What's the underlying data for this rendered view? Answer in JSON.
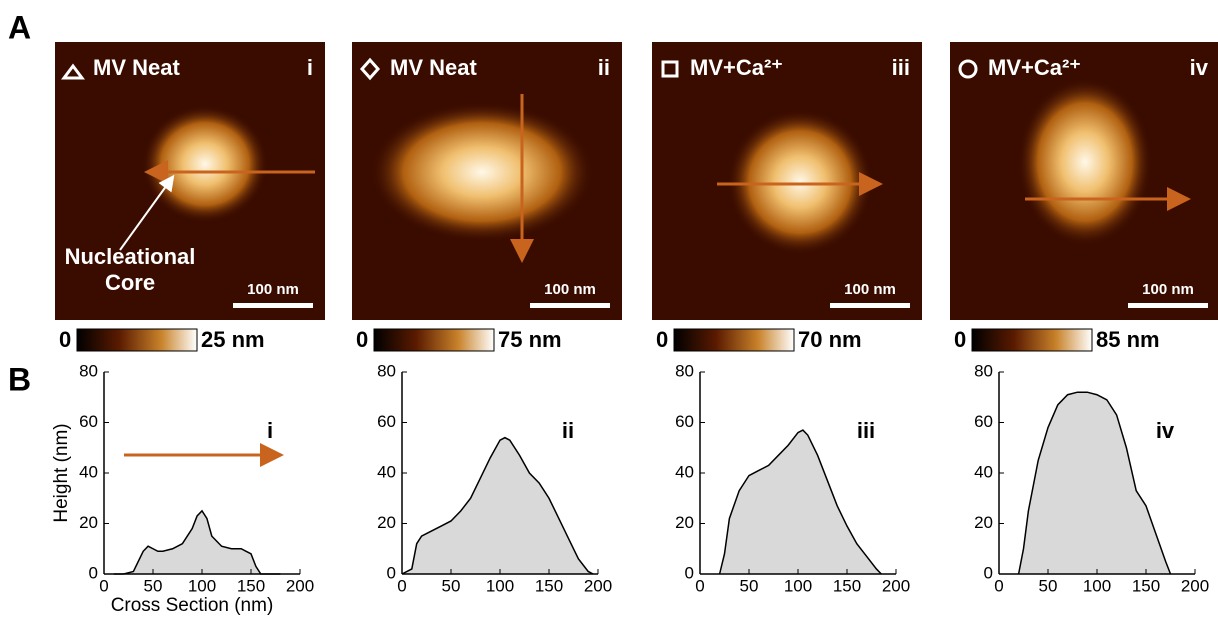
{
  "panel_labels": [
    "A",
    "B"
  ],
  "images": [
    {
      "label": "MV Neat",
      "roman": "i",
      "scale_bar": "100 nm",
      "colorbar_min": "0",
      "colorbar_max": "25 nm"
    },
    {
      "label": "MV Neat",
      "roman": "ii",
      "scale_bar": "100 nm",
      "colorbar_min": "0",
      "colorbar_max": "75 nm"
    },
    {
      "label": "MV+Ca²⁺",
      "roman": "iii",
      "scale_bar": "100 nm",
      "colorbar_min": "0",
      "colorbar_max": "70 nm"
    },
    {
      "label": "MV+Ca²⁺",
      "roman": "iv",
      "scale_bar": "100 nm",
      "colorbar_min": "0",
      "colorbar_max": "85 nm"
    }
  ],
  "annotation": [
    "Nucleational",
    "Core"
  ],
  "chart_data": [
    {
      "type": "area",
      "label": "i",
      "ylabel": "Height (nm)",
      "xlabel": "Cross Section (nm)",
      "color": "#d9d9d9",
      "x": [
        10,
        20,
        30,
        40,
        45,
        50,
        55,
        60,
        70,
        80,
        90,
        95,
        100,
        105,
        110,
        120,
        130,
        140,
        145,
        150,
        155,
        160,
        170,
        180
      ],
      "values": [
        0,
        0,
        1,
        9,
        11,
        10,
        9,
        9,
        10,
        12,
        18,
        23,
        25,
        22,
        15,
        11,
        10,
        10,
        9,
        8,
        3,
        0,
        0,
        0
      ],
      "xlim": [
        0,
        200
      ],
      "ylim": [
        0,
        80
      ],
      "xticks": [
        0,
        50,
        100,
        150,
        200
      ],
      "yticks": [
        0,
        20,
        40,
        60,
        80
      ]
    },
    {
      "type": "area",
      "label": "ii",
      "color": "#d9d9d9",
      "x": [
        0,
        10,
        15,
        20,
        30,
        40,
        50,
        60,
        70,
        80,
        90,
        100,
        105,
        110,
        120,
        130,
        140,
        150,
        160,
        170,
        180,
        190,
        195
      ],
      "values": [
        0,
        2,
        12,
        15,
        17,
        19,
        21,
        25,
        30,
        38,
        46,
        53,
        54,
        53,
        47,
        40,
        36,
        30,
        22,
        14,
        6,
        1,
        0
      ],
      "xlim": [
        0,
        200
      ],
      "ylim": [
        0,
        80
      ],
      "xticks": [
        0,
        50,
        100,
        150,
        200
      ],
      "yticks": [
        0,
        20,
        40,
        60,
        80
      ]
    },
    {
      "type": "area",
      "label": "iii",
      "color": "#d9d9d9",
      "x": [
        20,
        25,
        30,
        40,
        50,
        60,
        70,
        80,
        90,
        100,
        105,
        110,
        120,
        130,
        140,
        150,
        160,
        170,
        180,
        185
      ],
      "values": [
        0,
        8,
        22,
        33,
        39,
        41,
        43,
        47,
        51,
        56,
        57,
        55,
        47,
        37,
        27,
        19,
        12,
        7,
        2,
        0
      ],
      "xlim": [
        0,
        200
      ],
      "ylim": [
        0,
        80
      ],
      "xticks": [
        0,
        50,
        100,
        150,
        200
      ],
      "yticks": [
        0,
        20,
        40,
        60,
        80
      ]
    },
    {
      "type": "area",
      "label": "iv",
      "color": "#d9d9d9",
      "x": [
        20,
        25,
        30,
        40,
        50,
        60,
        70,
        80,
        90,
        100,
        110,
        120,
        130,
        140,
        150,
        160,
        170,
        175
      ],
      "values": [
        0,
        10,
        25,
        45,
        58,
        67,
        71,
        72,
        72,
        71,
        69,
        63,
        50,
        33,
        27,
        16,
        5,
        0
      ],
      "xlim": [
        0,
        200
      ],
      "ylim": [
        0,
        80
      ],
      "xticks": [
        0,
        50,
        100,
        150,
        200
      ],
      "yticks": [
        0,
        20,
        40,
        60,
        80
      ]
    }
  ]
}
